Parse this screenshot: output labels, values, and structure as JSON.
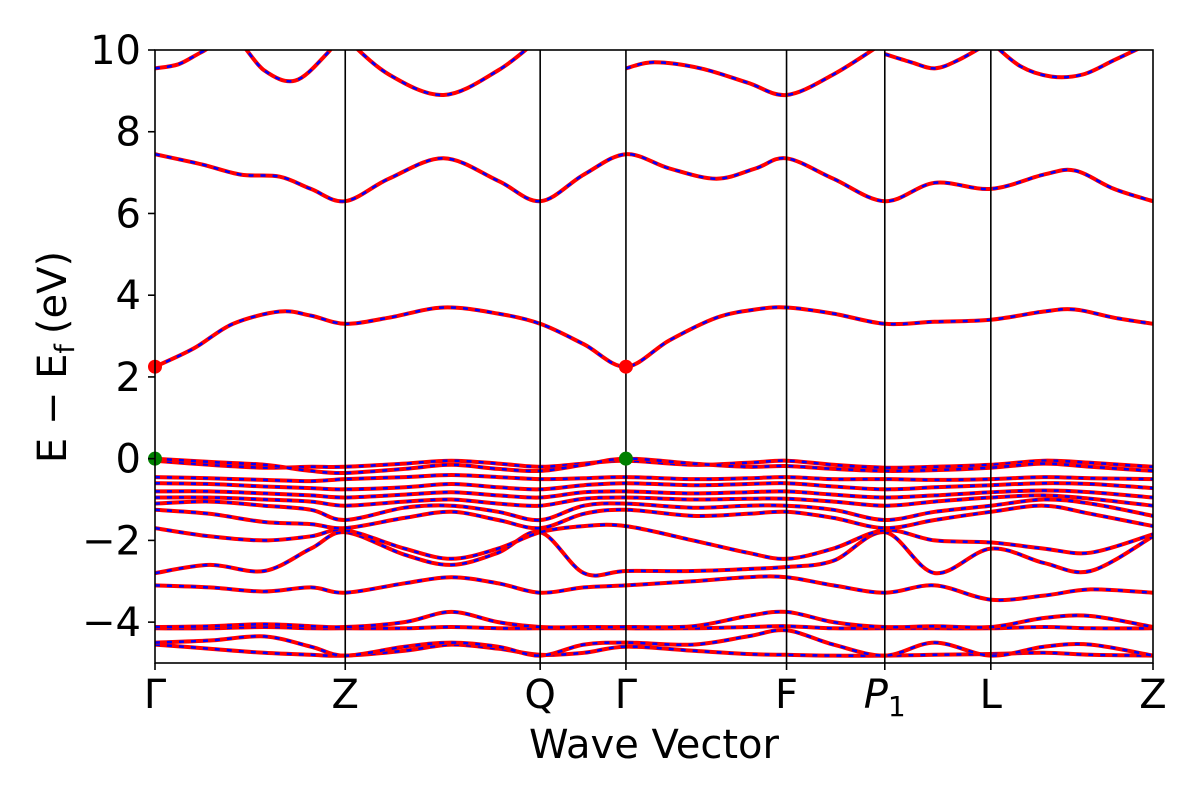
{
  "chart_data": {
    "type": "line",
    "title": "",
    "xlabel": "Wave Vector",
    "ylabel": "E − E_f (eV)",
    "ylabel_parts": {
      "main": "E  −  E",
      "sub": "f",
      "unit": "(eV)"
    },
    "ylim": [
      -5,
      10
    ],
    "yticks": [
      -4,
      -2,
      0,
      2,
      4,
      6,
      8,
      10
    ],
    "ytick_labels": [
      "−4",
      "−2",
      "0",
      "2",
      "4",
      "6",
      "8",
      "10"
    ],
    "x_range": [
      0,
      6.4
    ],
    "kpoints": [
      {
        "label": "Γ",
        "x": 0.0
      },
      {
        "label": "Z",
        "x": 1.22
      },
      {
        "label": "Q",
        "x": 2.47
      },
      {
        "label": "Γ",
        "x": 3.02
      },
      {
        "label": "F",
        "x": 4.05
      },
      {
        "label": "P",
        "label_sub": "1",
        "italic": true,
        "x": 4.68
      },
      {
        "label": "L",
        "x": 5.36
      },
      {
        "label": "Z",
        "x": 6.4
      }
    ],
    "colors": {
      "bands_main": "#ff0000",
      "bands_overlay": "#0000ff",
      "cbm_marker": "#ff0000",
      "vbm_marker": "#008000"
    },
    "bands": [
      {
        "x": [
          0,
          0.35,
          0.7,
          1.0,
          1.22,
          1.6,
          1.9,
          2.2,
          2.47,
          2.75,
          3.02,
          3.45,
          3.8,
          4.05,
          4.35,
          4.68,
          5.0,
          5.36,
          5.7,
          6.0,
          6.4
        ],
        "y": [
          -4.55,
          -4.65,
          -4.75,
          -4.8,
          -4.82,
          -4.7,
          -4.55,
          -4.65,
          -4.8,
          -4.75,
          -4.6,
          -4.7,
          -4.78,
          -4.8,
          -4.82,
          -4.82,
          -4.8,
          -4.78,
          -4.75,
          -4.8,
          -4.82
        ]
      },
      {
        "x": [
          0,
          0.35,
          0.7,
          1.0,
          1.22,
          1.6,
          1.9,
          2.2,
          2.47,
          2.75,
          3.02,
          3.45,
          3.8,
          4.05,
          4.35,
          4.68,
          5.0,
          5.36,
          5.7,
          6.0,
          6.4
        ],
        "y": [
          -4.5,
          -4.45,
          -4.35,
          -4.6,
          -4.82,
          -4.6,
          -4.5,
          -4.6,
          -4.82,
          -4.55,
          -4.5,
          -4.55,
          -4.35,
          -4.2,
          -4.55,
          -4.82,
          -4.5,
          -4.82,
          -4.6,
          -4.55,
          -4.82
        ]
      },
      {
        "x": [
          0,
          0.35,
          0.7,
          1.0,
          1.22,
          1.6,
          1.9,
          2.2,
          2.47,
          2.75,
          3.02,
          3.45,
          3.8,
          4.05,
          4.35,
          4.68,
          5.0,
          5.36,
          5.7,
          6.0,
          6.4
        ],
        "y": [
          -4.15,
          -4.15,
          -4.12,
          -4.15,
          -4.15,
          -4.15,
          -4.12,
          -4.15,
          -4.15,
          -4.15,
          -4.15,
          -4.15,
          -4.12,
          -4.1,
          -4.15,
          -4.15,
          -4.15,
          -4.15,
          -4.12,
          -4.15,
          -4.15
        ]
      },
      {
        "x": [
          0,
          0.35,
          0.7,
          1.0,
          1.22,
          1.6,
          1.9,
          2.2,
          2.47,
          2.75,
          3.02,
          3.45,
          3.8,
          4.05,
          4.35,
          4.68,
          5.0,
          5.36,
          5.7,
          6.0,
          6.4
        ],
        "y": [
          -4.12,
          -4.1,
          -4.05,
          -4.1,
          -4.12,
          -4.0,
          -3.75,
          -4.0,
          -4.12,
          -4.12,
          -4.12,
          -4.1,
          -3.85,
          -3.75,
          -4.0,
          -4.12,
          -4.1,
          -4.12,
          -3.9,
          -3.85,
          -4.12
        ]
      },
      {
        "x": [
          0,
          0.35,
          0.7,
          1.0,
          1.22,
          1.6,
          1.9,
          2.2,
          2.47,
          2.75,
          3.02,
          3.45,
          3.8,
          4.05,
          4.35,
          4.68,
          5.0,
          5.36,
          5.7,
          6.0,
          6.4
        ],
        "y": [
          -3.1,
          -3.15,
          -3.25,
          -3.15,
          -3.28,
          -3.05,
          -2.9,
          -3.05,
          -3.28,
          -3.15,
          -3.1,
          -3.0,
          -2.9,
          -2.9,
          -3.1,
          -3.28,
          -3.1,
          -3.45,
          -3.35,
          -3.2,
          -3.28
        ]
      },
      {
        "x": [
          0,
          0.35,
          0.7,
          1.0,
          1.22,
          1.6,
          1.9,
          2.2,
          2.47,
          2.75,
          3.02,
          3.45,
          3.8,
          4.05,
          4.35,
          4.68,
          5.0,
          5.36,
          5.7,
          6.0,
          6.4
        ],
        "y": [
          -2.8,
          -2.6,
          -2.75,
          -2.2,
          -1.8,
          -2.35,
          -2.6,
          -2.3,
          -1.8,
          -2.8,
          -2.75,
          -2.75,
          -2.7,
          -2.65,
          -2.5,
          -1.8,
          -2.8,
          -2.2,
          -2.55,
          -2.75,
          -1.9
        ]
      },
      {
        "x": [
          0,
          0.35,
          0.7,
          1.0,
          1.22,
          1.6,
          1.9,
          2.2,
          2.47,
          2.75,
          3.02,
          3.45,
          3.8,
          4.05,
          4.35,
          4.68,
          5.0,
          5.36,
          5.7,
          6.0,
          6.4
        ],
        "y": [
          -1.7,
          -1.9,
          -2.0,
          -1.9,
          -1.75,
          -2.2,
          -2.45,
          -2.2,
          -1.8,
          -1.65,
          -1.65,
          -2.0,
          -2.3,
          -2.45,
          -2.2,
          -1.75,
          -2.0,
          -2.05,
          -2.2,
          -2.3,
          -1.85
        ]
      },
      {
        "x": [
          0,
          0.35,
          0.7,
          1.0,
          1.22,
          1.6,
          1.9,
          2.2,
          2.47,
          2.75,
          3.02,
          3.45,
          3.8,
          4.05,
          4.35,
          4.68,
          5.0,
          5.36,
          5.7,
          6.0,
          6.4
        ],
        "y": [
          -1.25,
          -1.35,
          -1.55,
          -1.6,
          -1.7,
          -1.45,
          -1.3,
          -1.5,
          -1.7,
          -1.35,
          -1.25,
          -1.4,
          -1.35,
          -1.3,
          -1.45,
          -1.7,
          -1.5,
          -1.3,
          -1.15,
          -1.35,
          -1.65
        ]
      },
      {
        "x": [
          0,
          0.35,
          0.7,
          1.0,
          1.22,
          1.6,
          1.9,
          2.2,
          2.47,
          2.75,
          3.02,
          3.45,
          3.8,
          4.05,
          4.35,
          4.68,
          5.0,
          5.36,
          5.7,
          6.0,
          6.4
        ],
        "y": [
          -1.1,
          -1.05,
          -1.15,
          -1.25,
          -1.5,
          -1.2,
          -1.15,
          -1.3,
          -1.5,
          -1.15,
          -1.1,
          -1.2,
          -1.15,
          -1.15,
          -1.25,
          -1.5,
          -1.3,
          -1.15,
          -1.0,
          -1.1,
          -1.4
        ]
      },
      {
        "x": [
          0,
          0.35,
          0.7,
          1.0,
          1.22,
          1.6,
          1.9,
          2.2,
          2.47,
          2.75,
          3.02,
          3.45,
          3.8,
          4.05,
          4.35,
          4.68,
          5.0,
          5.36,
          5.7,
          6.0,
          6.4
        ],
        "y": [
          -0.95,
          -0.95,
          -1.0,
          -1.05,
          -1.15,
          -1.05,
          -1.0,
          -1.1,
          -1.15,
          -0.98,
          -0.95,
          -1.0,
          -0.98,
          -0.98,
          -1.05,
          -1.15,
          -1.05,
          -0.95,
          -0.9,
          -0.98,
          -1.15
        ]
      },
      {
        "x": [
          0,
          0.35,
          0.7,
          1.0,
          1.22,
          1.6,
          1.9,
          2.2,
          2.47,
          2.75,
          3.02,
          3.45,
          3.8,
          4.05,
          4.35,
          4.68,
          5.0,
          5.36,
          5.7,
          6.0,
          6.4
        ],
        "y": [
          -0.8,
          -0.8,
          -0.85,
          -0.9,
          -0.95,
          -0.88,
          -0.82,
          -0.9,
          -0.95,
          -0.82,
          -0.8,
          -0.85,
          -0.82,
          -0.8,
          -0.88,
          -0.95,
          -0.9,
          -0.82,
          -0.78,
          -0.82,
          -0.95
        ]
      },
      {
        "x": [
          0,
          0.35,
          0.7,
          1.0,
          1.22,
          1.6,
          1.9,
          2.2,
          2.47,
          2.75,
          3.02,
          3.45,
          3.8,
          4.05,
          4.35,
          4.68,
          5.0,
          5.36,
          5.7,
          6.0,
          6.4
        ],
        "y": [
          -0.6,
          -0.62,
          -0.68,
          -0.72,
          -0.75,
          -0.7,
          -0.62,
          -0.7,
          -0.75,
          -0.65,
          -0.6,
          -0.65,
          -0.62,
          -0.6,
          -0.68,
          -0.75,
          -0.7,
          -0.65,
          -0.6,
          -0.62,
          -0.72
        ]
      },
      {
        "x": [
          0,
          0.35,
          0.7,
          1.0,
          1.22,
          1.6,
          1.9,
          2.2,
          2.47,
          2.75,
          3.02,
          3.45,
          3.8,
          4.05,
          4.35,
          4.68,
          5.0,
          5.36,
          5.7,
          6.0,
          6.4
        ],
        "y": [
          -0.45,
          -0.48,
          -0.52,
          -0.55,
          -0.5,
          -0.45,
          -0.4,
          -0.45,
          -0.5,
          -0.48,
          -0.45,
          -0.5,
          -0.48,
          -0.45,
          -0.5,
          -0.5,
          -0.52,
          -0.5,
          -0.45,
          -0.48,
          -0.5
        ]
      },
      {
        "x": [
          0,
          0.35,
          0.7,
          1.0,
          1.22,
          1.6,
          1.9,
          2.2,
          2.47,
          2.75,
          3.02,
          3.45,
          3.8,
          4.05,
          4.35,
          4.68,
          5.0,
          5.36,
          5.7,
          6.0,
          6.4
        ],
        "y": [
          -0.05,
          -0.15,
          -0.22,
          -0.2,
          -0.2,
          -0.12,
          -0.05,
          -0.12,
          -0.2,
          -0.12,
          -0.05,
          -0.15,
          -0.1,
          -0.05,
          -0.15,
          -0.22,
          -0.2,
          -0.15,
          -0.05,
          -0.1,
          -0.2
        ]
      },
      {
        "x": [
          0,
          0.35,
          0.7,
          1.0,
          1.22,
          1.6,
          1.9,
          2.2,
          2.47,
          2.75,
          3.02,
          3.45,
          3.8,
          4.05,
          4.35,
          4.68,
          5.0,
          5.36,
          5.7,
          6.0,
          6.4
        ],
        "y": [
          0.0,
          -0.08,
          -0.15,
          -0.3,
          -0.35,
          -0.25,
          -0.15,
          -0.25,
          -0.3,
          -0.15,
          0.0,
          -0.12,
          -0.2,
          -0.18,
          -0.25,
          -0.3,
          -0.28,
          -0.22,
          -0.12,
          -0.2,
          -0.3
        ]
      },
      {
        "x": [
          0,
          0.25,
          0.5,
          0.8,
          1.0,
          1.22,
          1.5,
          1.85,
          2.2,
          2.47,
          2.75,
          3.02,
          3.3,
          3.6,
          3.85,
          4.05,
          4.35,
          4.68,
          5.0,
          5.36,
          5.7,
          5.9,
          6.15,
          6.4
        ],
        "y": [
          2.25,
          2.7,
          3.3,
          3.6,
          3.5,
          3.3,
          3.45,
          3.7,
          3.55,
          3.3,
          2.8,
          2.25,
          2.9,
          3.45,
          3.65,
          3.7,
          3.55,
          3.3,
          3.35,
          3.4,
          3.6,
          3.65,
          3.45,
          3.3
        ]
      },
      {
        "x": [
          0,
          0.3,
          0.55,
          0.8,
          1.0,
          1.22,
          1.5,
          1.85,
          2.2,
          2.47,
          2.75,
          3.02,
          3.3,
          3.6,
          3.85,
          4.05,
          4.35,
          4.68,
          5.0,
          5.36,
          5.7,
          5.9,
          6.15,
          6.4
        ],
        "y": [
          7.45,
          7.2,
          6.95,
          6.9,
          6.6,
          6.3,
          6.85,
          7.35,
          6.8,
          6.3,
          6.95,
          7.45,
          7.1,
          6.85,
          7.1,
          7.35,
          6.85,
          6.3,
          6.75,
          6.6,
          6.95,
          7.05,
          6.6,
          6.3
        ]
      },
      {
        "x": [
          0,
          0.15,
          0.3,
          0.5,
          0.7,
          0.9,
          1.1,
          1.22
        ],
        "y": [
          9.55,
          9.65,
          9.95,
          10.3,
          9.5,
          9.25,
          9.9,
          10.5
        ]
      },
      {
        "x": [
          1.22,
          1.5,
          1.85,
          2.2,
          2.47
        ],
        "y": [
          10.3,
          9.4,
          8.9,
          9.5,
          10.3
        ]
      },
      {
        "x": [
          3.02,
          3.2,
          3.5,
          3.8,
          4.05,
          4.35,
          4.68
        ],
        "y": [
          9.55,
          9.7,
          9.55,
          9.2,
          8.9,
          9.4,
          10.2
        ]
      },
      {
        "x": [
          4.68,
          4.85,
          5.0,
          5.15,
          5.36
        ],
        "y": [
          9.9,
          9.7,
          9.55,
          9.75,
          10.2
        ]
      },
      {
        "x": [
          5.36,
          5.55,
          5.75,
          5.95,
          6.15,
          6.4
        ],
        "y": [
          10.2,
          9.6,
          9.35,
          9.4,
          9.75,
          10.2
        ]
      }
    ],
    "markers": [
      {
        "x": 0.0,
        "y": 2.25,
        "type": "cbm"
      },
      {
        "x": 3.02,
        "y": 2.25,
        "type": "cbm"
      },
      {
        "x": 0.0,
        "y": 0.0,
        "type": "vbm"
      },
      {
        "x": 3.02,
        "y": 0.0,
        "type": "vbm"
      }
    ]
  }
}
